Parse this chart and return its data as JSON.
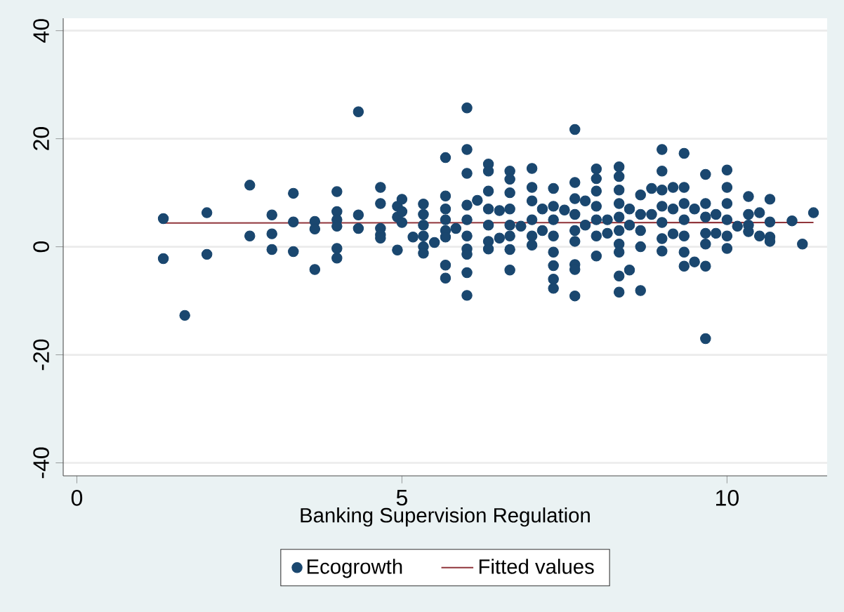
{
  "chart_data": {
    "type": "scatter",
    "xlabel": "Banking Supervision Regulation",
    "xlim": [
      -0.21,
      11.54
    ],
    "ylim": [
      -42.4,
      42.3
    ],
    "xticks": [
      0,
      5,
      10
    ],
    "yticks": [
      -40,
      -20,
      0,
      20,
      40
    ],
    "grid": "y",
    "legend": "bottom",
    "series": [
      {
        "name": "Ecogrowth",
        "type": "scatter",
        "marker": "circle",
        "color": "#1a476f",
        "x": [
          1.33,
          1.33,
          1.66,
          2.0,
          2.0,
          2.66,
          2.66,
          3.0,
          3.0,
          3.0,
          3.33,
          3.33,
          3.33,
          3.66,
          3.66,
          3.66,
          4.0,
          4.0,
          4.0,
          4.0,
          4.0,
          4.0,
          4.33,
          4.33,
          4.33,
          4.67,
          4.67,
          4.67,
          4.67,
          4.67,
          4.93,
          4.93,
          4.93,
          5.0,
          5.0,
          5.0,
          5.17,
          5.33,
          5.33,
          5.33,
          5.33,
          5.33,
          5.33,
          5.5,
          5.67,
          5.67,
          5.67,
          5.67,
          5.67,
          5.67,
          5.67,
          5.67,
          5.83,
          6.0,
          6.0,
          6.0,
          6.0,
          6.0,
          6.0,
          6.0,
          6.0,
          6.0,
          6.0,
          6.16,
          6.33,
          6.33,
          6.33,
          6.33,
          6.33,
          6.33,
          6.33,
          6.5,
          6.5,
          6.66,
          6.66,
          6.66,
          6.66,
          6.66,
          6.66,
          6.66,
          6.66,
          6.83,
          7.0,
          7.0,
          7.0,
          7.0,
          7.0,
          7.0,
          7.16,
          7.16,
          7.33,
          7.33,
          7.33,
          7.33,
          7.33,
          7.33,
          7.33,
          7.33,
          7.5,
          7.66,
          7.66,
          7.66,
          7.66,
          7.66,
          7.66,
          7.66,
          7.66,
          7.66,
          7.82,
          7.82,
          7.99,
          7.99,
          7.99,
          7.99,
          7.99,
          7.99,
          7.99,
          8.16,
          8.16,
          8.34,
          8.34,
          8.34,
          8.34,
          8.34,
          8.34,
          8.34,
          8.34,
          8.34,
          8.34,
          8.5,
          8.5,
          8.5,
          8.67,
          8.67,
          8.67,
          8.67,
          8.67,
          8.84,
          8.84,
          9.0,
          9.0,
          9.0,
          9.0,
          9.0,
          9.0,
          9.0,
          9.17,
          9.17,
          9.17,
          9.34,
          9.34,
          9.34,
          9.34,
          9.34,
          9.34,
          9.34,
          9.5,
          9.5,
          9.67,
          9.67,
          9.67,
          9.67,
          9.67,
          9.67,
          9.67,
          9.83,
          9.83,
          10.0,
          10.0,
          10.0,
          10.0,
          10.0,
          10.0,
          10.16,
          10.33,
          10.33,
          10.33,
          10.33,
          10.5,
          10.5,
          10.66,
          10.66,
          10.66,
          10.66,
          11.0,
          11.16,
          11.33
        ],
        "values": [
          5.2,
          -2.2,
          -12.7,
          6.3,
          -1.4,
          11.4,
          2.0,
          5.9,
          2.4,
          -0.5,
          9.9,
          4.6,
          -0.9,
          4.7,
          3.3,
          -4.2,
          10.2,
          6.5,
          5.0,
          3.8,
          -0.3,
          -2.1,
          25.0,
          5.9,
          3.4,
          11.0,
          8.0,
          3.4,
          2.2,
          1.6,
          -0.6,
          7.5,
          5.5,
          8.8,
          6.5,
          4.5,
          1.8,
          7.9,
          6.0,
          4.0,
          2.0,
          0,
          -1.2,
          0.8,
          16.5,
          9.4,
          7.0,
          5.0,
          3.0,
          1.8,
          -3.4,
          -5.8,
          3.4,
          25.7,
          18.0,
          13.6,
          7.7,
          5.0,
          2.0,
          -0.4,
          -1.4,
          -4.8,
          -9.0,
          8.6,
          15.3,
          14.0,
          10.3,
          7.0,
          4.0,
          1.0,
          -0.4,
          6.7,
          1.6,
          14.0,
          12.5,
          10.0,
          7.0,
          4.0,
          2.0,
          -0.5,
          -4.3,
          3.8,
          14.5,
          11.0,
          8.5,
          5.0,
          2.0,
          0.3,
          7.0,
          3.0,
          10.8,
          7.5,
          5.0,
          2.0,
          -1.0,
          -3.5,
          -6.0,
          -7.7,
          6.8,
          21.7,
          11.9,
          8.9,
          6.0,
          3.0,
          1.0,
          -3.3,
          -4.2,
          -9.1,
          8.5,
          4.0,
          14.4,
          12.6,
          10.3,
          7.5,
          5.0,
          2.0,
          -1.7,
          5.0,
          2.5,
          14.8,
          13.0,
          10.5,
          8.0,
          5.5,
          3.0,
          0.5,
          -1.0,
          -5.4,
          -8.4,
          7.0,
          4.0,
          -4.3,
          9.6,
          6.0,
          3.0,
          0,
          -8.1,
          10.8,
          6.0,
          18.0,
          14.0,
          10.5,
          7.5,
          4.5,
          1.5,
          -0.8,
          11.0,
          7.0,
          2.4,
          17.3,
          11.0,
          8.0,
          5.0,
          2.0,
          -1.0,
          -3.6,
          7.0,
          -2.8,
          13.4,
          8.0,
          5.5,
          2.5,
          0.5,
          -3.6,
          -17.0,
          6.0,
          2.5,
          14.2,
          11.0,
          8.0,
          5.0,
          2.0,
          -0.3,
          3.8,
          9.3,
          6.0,
          4.0,
          2.8,
          6.3,
          2.0,
          8.8,
          4.6,
          1.8,
          1.0,
          4.8,
          0.5,
          6.3
        ]
      },
      {
        "name": "Fitted values",
        "type": "line",
        "line_style": "solid",
        "color": "#90353b",
        "x": [
          1.33,
          11.33
        ],
        "values": [
          4.4,
          4.5
        ]
      }
    ]
  }
}
